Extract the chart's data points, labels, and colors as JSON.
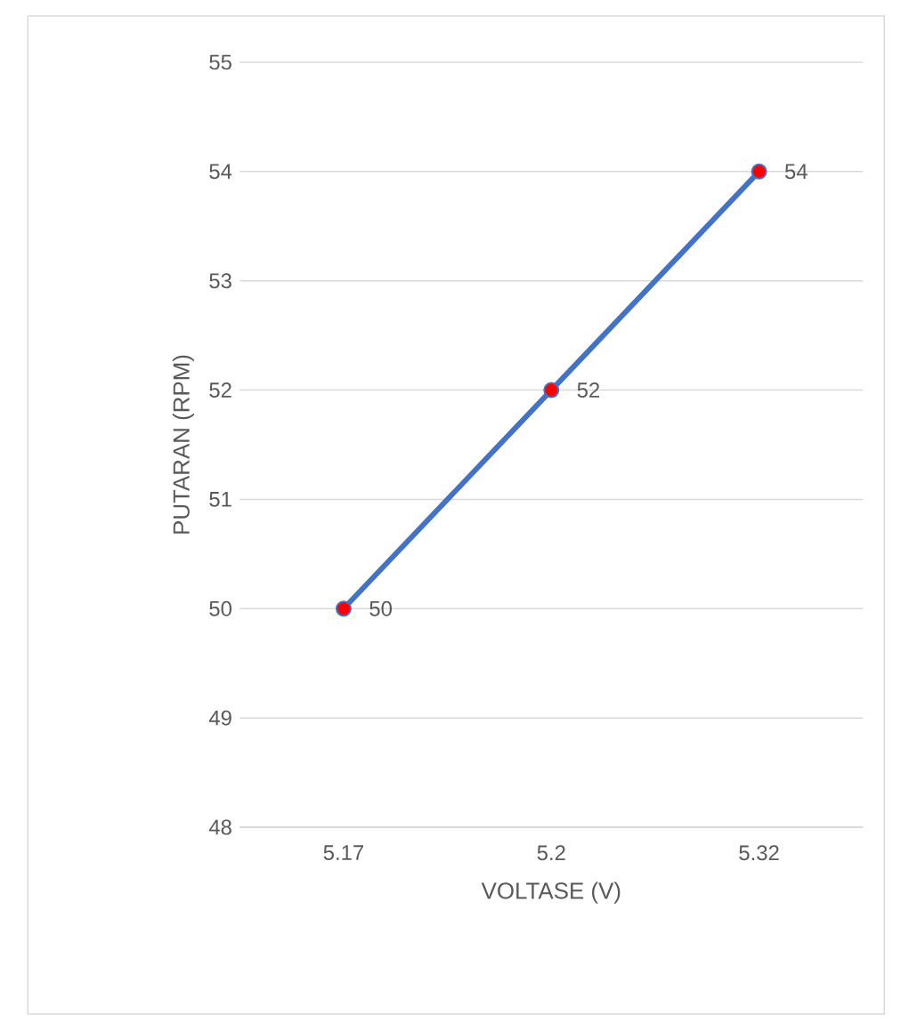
{
  "chart_data": {
    "type": "line",
    "xlabel": "VOLTASE (V)",
    "ylabel": "PUTARAN (RPM)",
    "categories": [
      "5.17",
      "5.2",
      "5.32"
    ],
    "series": [
      {
        "color": "#4472c4",
        "colors": [
          "#ff0000",
          "#ff0000",
          "#ff0000"
        ],
        "values": [
          50,
          52,
          54
        ]
      }
    ],
    "ylim": [
      48,
      55
    ],
    "yticks": [
      48,
      49,
      50,
      51,
      52,
      53,
      54,
      55
    ],
    "grid": "y",
    "marker": "circle",
    "data_labels": true
  }
}
